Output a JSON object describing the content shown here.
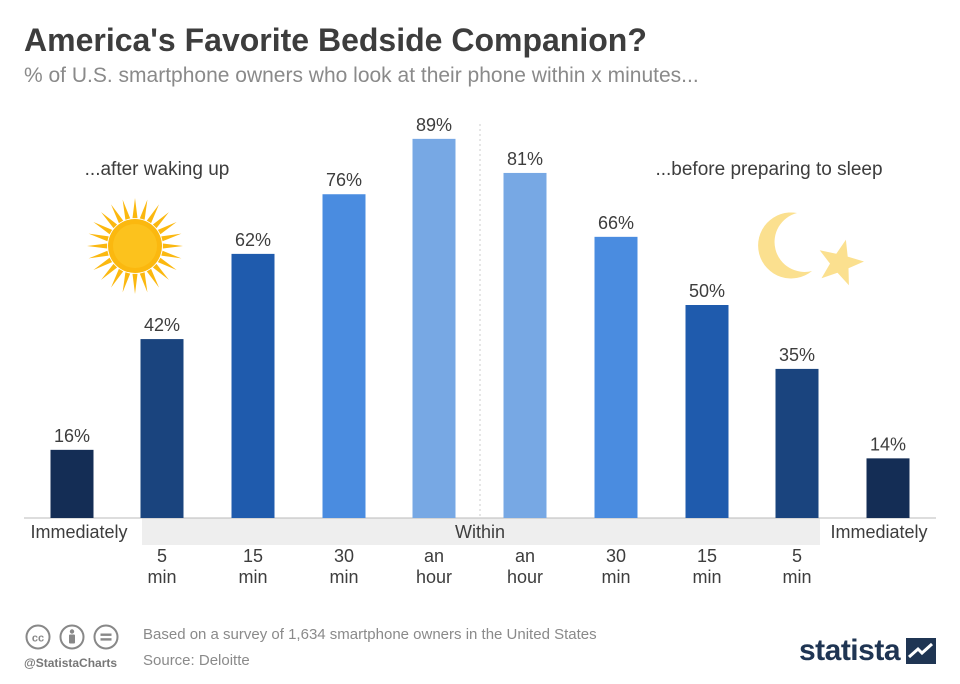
{
  "header": {
    "title": "America's Favorite Bedside Companion?",
    "subtitle": "% of U.S. smartphone owners who look at their phone within x minutes..."
  },
  "captions": {
    "left": "...after waking up",
    "right": "...before preparing to sleep",
    "within": "Within"
  },
  "chart_data": {
    "type": "bar",
    "title": "America's Favorite Bedside Companion?",
    "subtitle": "% of U.S. smartphone owners who look at their phone within x minutes...",
    "categories": [
      [
        "Immediately"
      ],
      [
        "5",
        "min"
      ],
      [
        "15",
        "min"
      ],
      [
        "30",
        "min"
      ],
      [
        "an",
        "hour"
      ],
      [
        "an",
        "hour"
      ],
      [
        "30",
        "min"
      ],
      [
        "15",
        "min"
      ],
      [
        "5",
        "min"
      ],
      [
        "Immediately"
      ]
    ],
    "values": [
      16,
      42,
      62,
      76,
      89,
      81,
      66,
      50,
      35,
      14
    ],
    "value_labels": [
      "16%",
      "42%",
      "62%",
      "76%",
      "89%",
      "81%",
      "66%",
      "50%",
      "35%",
      "14%"
    ],
    "bar_colors": [
      "#142d55",
      "#1a447e",
      "#1f5bad",
      "#4a8ce0",
      "#77a8e4",
      "#77a8e4",
      "#4a8ce0",
      "#1f5bad",
      "#1a447e",
      "#142d55"
    ],
    "groups": [
      "...after waking up",
      "...before preparing to sleep"
    ],
    "ylim": [
      0,
      100
    ],
    "grid": false
  },
  "footer": {
    "note": "Based on a survey of 1,634 smartphone owners in the United States",
    "source": "Source: Deloitte",
    "handle": "@StatistaCharts",
    "brand": "statista"
  },
  "icons": {
    "sun": "sun-icon",
    "moon": "crescent-moon-icon",
    "star": "star-icon",
    "license": [
      "creative-commons-icon",
      "attribution-icon",
      "no-derivatives-icon"
    ]
  },
  "colors": {
    "sun": "#fbb80f",
    "moon": "#fbe08f",
    "within_band": "#eeeeee",
    "brand": "#1f3553"
  }
}
